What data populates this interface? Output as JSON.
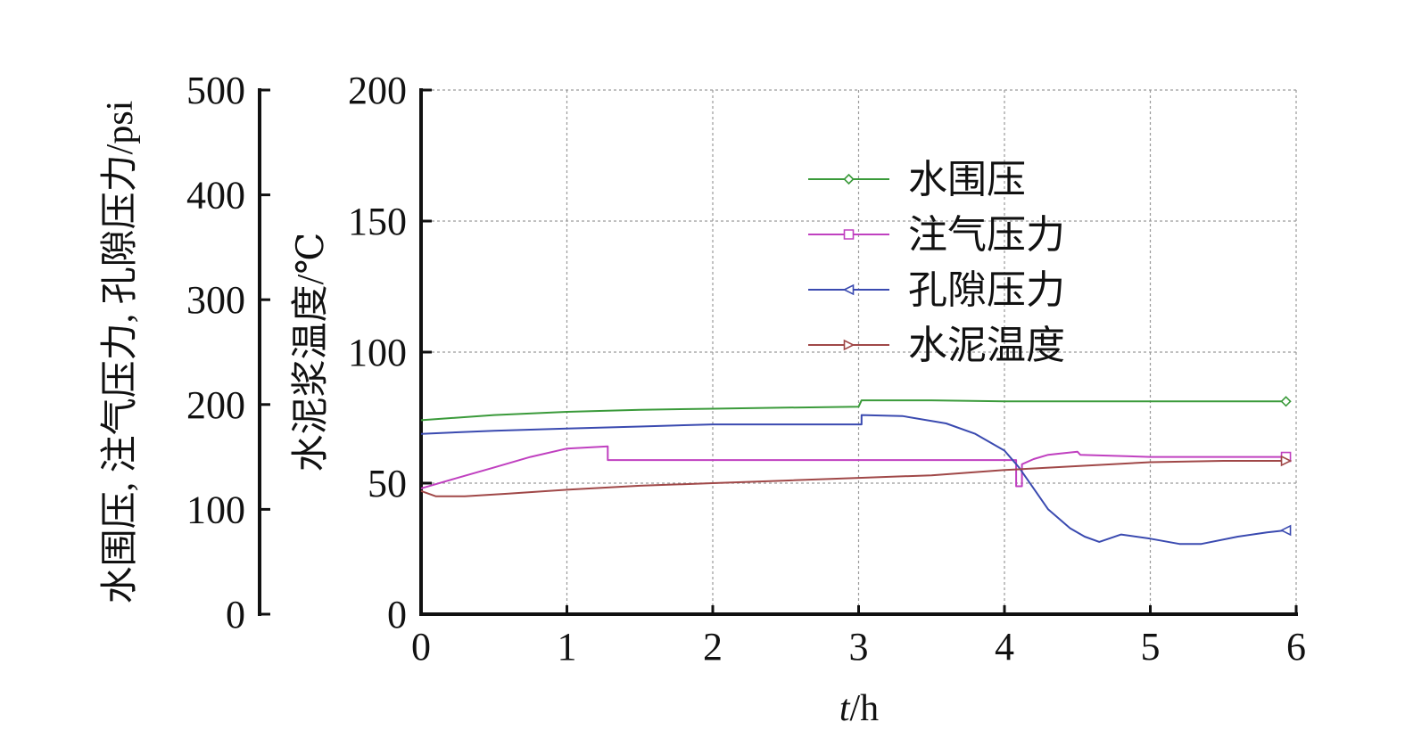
{
  "chart_data": {
    "type": "line",
    "x_axis": {
      "label_italic": "t",
      "label_rest": "/h",
      "range": [
        0,
        6
      ],
      "ticks": [
        "0",
        "1",
        "2",
        "3",
        "4",
        "5",
        "6"
      ]
    },
    "y_axis_left": {
      "label": "水围压, 注气压力, 孔隙压力/psi",
      "range": [
        0,
        500
      ],
      "ticks": [
        "0",
        "100",
        "200",
        "300",
        "400",
        "500"
      ]
    },
    "y_axis_right": {
      "label": "水泥浆温度/℃",
      "range": [
        0,
        200
      ],
      "ticks": [
        "0",
        "50",
        "100",
        "150",
        "200"
      ]
    },
    "grid": true,
    "legend_position": "top-right",
    "series": [
      {
        "name": "水围压",
        "axis": "left",
        "color": "#3a9a3a",
        "marker": "diamond",
        "points": [
          [
            0,
            185
          ],
          [
            0.5,
            190
          ],
          [
            1,
            193
          ],
          [
            1.5,
            195
          ],
          [
            2,
            196
          ],
          [
            2.5,
            197
          ],
          [
            3,
            198
          ],
          [
            3.02,
            204
          ],
          [
            3.5,
            204
          ],
          [
            4,
            203
          ],
          [
            4.5,
            203
          ],
          [
            5,
            203
          ],
          [
            5.5,
            203
          ],
          [
            5.93,
            203
          ]
        ]
      },
      {
        "name": "注气压力",
        "axis": "left",
        "color": "#c040c0",
        "marker": "square",
        "points": [
          [
            0,
            120
          ],
          [
            0.25,
            130
          ],
          [
            0.5,
            140
          ],
          [
            0.75,
            150
          ],
          [
            1,
            158
          ],
          [
            1.28,
            160
          ],
          [
            1.28,
            147
          ],
          [
            1.5,
            147
          ],
          [
            2,
            147
          ],
          [
            3,
            147
          ],
          [
            4.08,
            147
          ],
          [
            4.08,
            122
          ],
          [
            4.12,
            122
          ],
          [
            4.12,
            143
          ],
          [
            4.2,
            148
          ],
          [
            4.3,
            152
          ],
          [
            4.5,
            155
          ],
          [
            4.52,
            152
          ],
          [
            5,
            150
          ],
          [
            5.5,
            150
          ],
          [
            5.93,
            150
          ]
        ]
      },
      {
        "name": "孔隙压力",
        "axis": "left",
        "color": "#3a4ab0",
        "marker": "triangle-left",
        "points": [
          [
            0,
            172
          ],
          [
            0.5,
            175
          ],
          [
            1,
            177
          ],
          [
            1.5,
            179
          ],
          [
            2,
            181
          ],
          [
            2.5,
            181
          ],
          [
            3.02,
            181
          ],
          [
            3.02,
            190
          ],
          [
            3.3,
            189
          ],
          [
            3.6,
            182
          ],
          [
            3.8,
            172
          ],
          [
            4,
            156
          ],
          [
            4.1,
            140
          ],
          [
            4.2,
            120
          ],
          [
            4.3,
            100
          ],
          [
            4.45,
            82
          ],
          [
            4.55,
            74
          ],
          [
            4.65,
            69
          ],
          [
            4.8,
            76
          ],
          [
            5,
            72
          ],
          [
            5.2,
            67
          ],
          [
            5.35,
            67
          ],
          [
            5.6,
            74
          ],
          [
            5.8,
            78
          ],
          [
            5.93,
            80
          ]
        ]
      },
      {
        "name": "水泥温度",
        "axis": "right",
        "color": "#a04848",
        "marker": "triangle-right",
        "points": [
          [
            0,
            47
          ],
          [
            0.1,
            45
          ],
          [
            0.3,
            45
          ],
          [
            0.6,
            46
          ],
          [
            1,
            47.5
          ],
          [
            1.5,
            49
          ],
          [
            2,
            50
          ],
          [
            2.5,
            51
          ],
          [
            3,
            52
          ],
          [
            3.5,
            53
          ],
          [
            4,
            55
          ],
          [
            4.5,
            56.5
          ],
          [
            5,
            58
          ],
          [
            5.5,
            58.5
          ],
          [
            5.93,
            58.5
          ]
        ]
      }
    ]
  }
}
